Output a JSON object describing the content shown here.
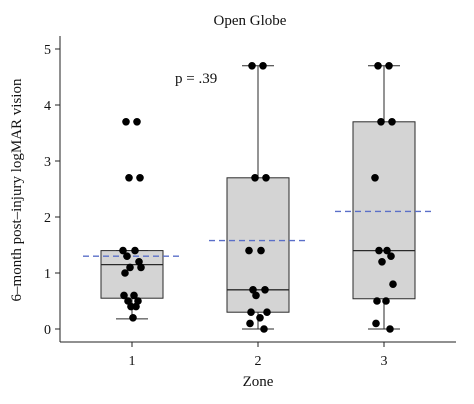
{
  "chart_data": {
    "type": "box",
    "title": "Open Globe",
    "xlabel": "Zone",
    "ylabel": "6–month post–injury logMAR vision",
    "categories": [
      "1",
      "2",
      "3"
    ],
    "ylim": [
      -0.25,
      5.25
    ],
    "yticks": [
      0,
      1,
      2,
      3,
      4,
      5
    ],
    "annotation": "p = .39",
    "grid": false,
    "colors": {
      "box_fill": "#d4d4d4",
      "box_stroke": "#2a2a2a",
      "mean_line": "#5a6fc8",
      "points": "#000000"
    },
    "boxes": [
      {
        "category": "1",
        "whisker_low": 0.18,
        "q1": 0.55,
        "median": 1.15,
        "q3": 1.4,
        "whisker_high": 1.4,
        "mean": 1.3
      },
      {
        "category": "2",
        "whisker_low": 0.0,
        "q1": 0.3,
        "median": 0.7,
        "q3": 2.7,
        "whisker_high": 4.7,
        "mean": 1.58
      },
      {
        "category": "3",
        "whisker_low": 0.0,
        "q1": 0.54,
        "median": 1.4,
        "q3": 3.7,
        "whisker_high": 4.7,
        "mean": 2.1
      }
    ],
    "points": [
      {
        "category": "1",
        "values": [
          3.7,
          3.7,
          2.7,
          2.7,
          1.4,
          1.4,
          1.3,
          1.2,
          1.1,
          1.1,
          1.0,
          0.6,
          0.6,
          0.5,
          0.5,
          0.4,
          0.4,
          0.2
        ]
      },
      {
        "category": "2",
        "values": [
          4.7,
          4.7,
          2.7,
          2.7,
          1.4,
          1.4,
          0.7,
          0.7,
          0.6,
          0.3,
          0.3,
          0.2,
          0.1,
          0.0
        ]
      },
      {
        "category": "3",
        "values": [
          4.7,
          4.7,
          3.7,
          3.7,
          2.7,
          1.4,
          1.4,
          1.3,
          1.2,
          0.8,
          0.5,
          0.5,
          0.1,
          0.0
        ]
      }
    ]
  }
}
